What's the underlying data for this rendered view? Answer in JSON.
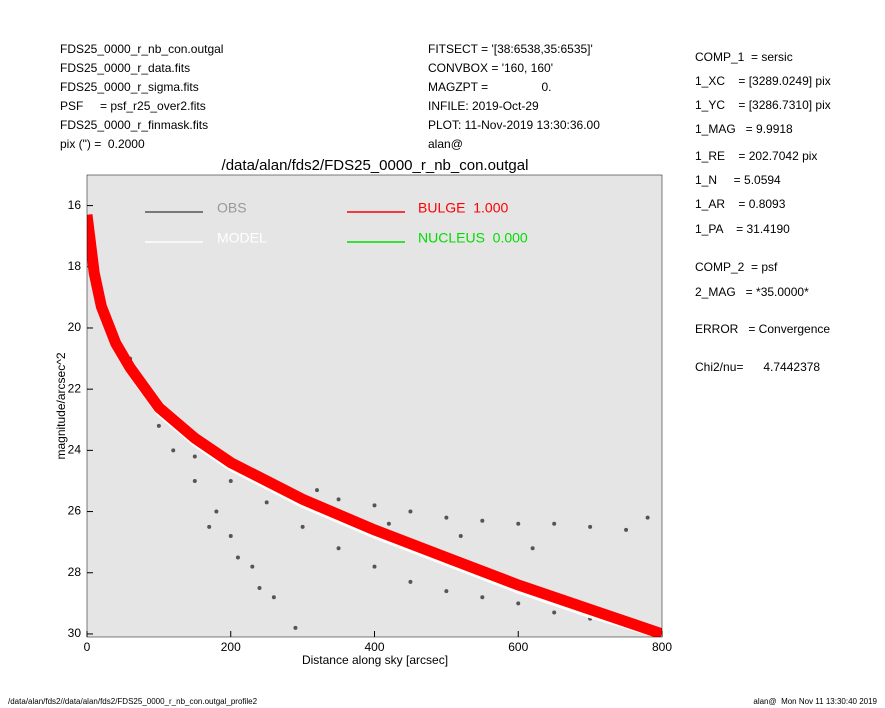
{
  "header": {
    "left": [
      "FDS25_0000_r_nb_con.outgal",
      "FDS25_0000_r_data.fits",
      "FDS25_0000_r_sigma.fits",
      "PSF     = psf_r25_over2.fits",
      "FDS25_0000_r_finmask.fits",
      "pix (\") =  0.2000"
    ],
    "middle": [
      "FITSECT = '[38:6538,35:6535]'",
      "CONVBOX = '160, 160'",
      "MAGZPT =                0.",
      "INFILE: 2019-Oct-29",
      "PLOT: 11-Nov-2019 13:30:36.00",
      "alan@"
    ],
    "right": [
      "COMP_1  = sersic",
      "1_XC    = [3289.0249] pix",
      "1_YC    = [3286.7310] pix",
      "1_MAG   = 9.9918",
      "1_RE    = 202.7042 pix",
      "1_N     = 5.0594",
      "1_AR    = 0.8093",
      "1_PA    = 31.4190",
      "COMP_2  = psf",
      "2_MAG   = *35.0000*",
      "ERROR   = Convergence",
      "Chi2/nu=      4.7442378"
    ]
  },
  "footer": {
    "left": "/data/alan/fds2//data/alan/fds2/FDS25_0000_r_nb_con.outgal_profile2",
    "right": "alan@  Mon Nov 11 13:30:40 2019"
  },
  "chart_data": {
    "type": "scatter",
    "title": "/data/alan/fds2/FDS25_0000_r_nb_con.outgal",
    "xlabel": "Distance along sky [arcsec]",
    "ylabel": "magnitude/arcsec^2",
    "xlim": [
      0,
      800
    ],
    "xticks": [
      0,
      200,
      400,
      600,
      800
    ],
    "ylim": [
      15,
      30.1
    ],
    "y_inverted": true,
    "yticks": [
      16,
      18,
      20,
      22,
      24,
      26,
      28,
      30
    ],
    "background": "#e5e5e5",
    "series": [
      {
        "name": "OBS",
        "color": "#555555",
        "mode": "markers",
        "x": [
          60,
          80,
          100,
          120,
          150,
          180,
          200,
          230,
          260,
          290,
          150,
          200,
          250,
          300,
          350,
          400,
          450,
          500,
          550,
          600,
          650,
          700,
          750,
          350,
          400,
          450,
          500,
          550,
          600,
          650,
          700,
          750,
          780,
          320,
          420,
          520,
          620,
          170,
          210,
          240
        ],
        "values": [
          21,
          22,
          23.2,
          24,
          25,
          26,
          26.8,
          27.8,
          28.8,
          29.8,
          24.2,
          25,
          25.7,
          26.5,
          27.2,
          27.8,
          28.3,
          28.6,
          28.8,
          29,
          29.3,
          29.5,
          29.7,
          25.6,
          25.8,
          26,
          26.2,
          26.3,
          26.4,
          26.4,
          26.5,
          26.6,
          26.2,
          25.3,
          26.4,
          26.8,
          27.2,
          26.5,
          27.5,
          28.5
        ]
      },
      {
        "name": "MODEL",
        "color": "#ffffff",
        "mode": "line",
        "x": [
          10,
          20,
          40,
          60,
          100,
          150,
          200,
          300,
          400,
          500,
          600,
          700,
          800
        ],
        "values": [
          18.4,
          19.5,
          20.7,
          21.5,
          22.8,
          23.8,
          24.6,
          25.8,
          26.8,
          27.7,
          28.6,
          29.4,
          30.1
        ]
      },
      {
        "name": "BULGE  1.000",
        "color": "#ff0000",
        "mode": "line",
        "x": [
          0,
          10,
          20,
          40,
          60,
          100,
          150,
          200,
          300,
          400,
          500,
          600,
          700,
          800
        ],
        "values": [
          16.3,
          18.2,
          19.3,
          20.5,
          21.3,
          22.6,
          23.6,
          24.4,
          25.6,
          26.6,
          27.5,
          28.4,
          29.2,
          30
        ]
      },
      {
        "name": "NUCLEUS  0.000",
        "color": "#00dd00",
        "mode": "line",
        "x": [],
        "values": []
      }
    ]
  }
}
